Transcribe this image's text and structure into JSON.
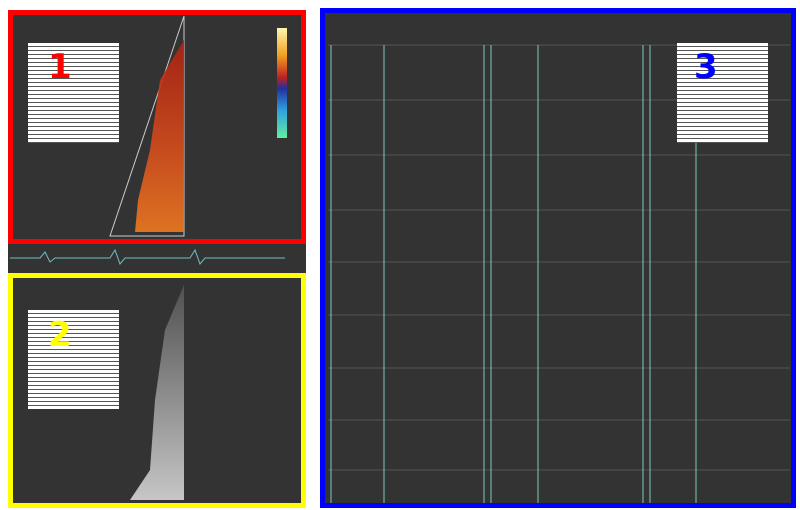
{
  "panels": [
    {
      "label": "1"
    },
    {
      "label": "2"
    },
    {
      "label": "3"
    }
  ]
}
